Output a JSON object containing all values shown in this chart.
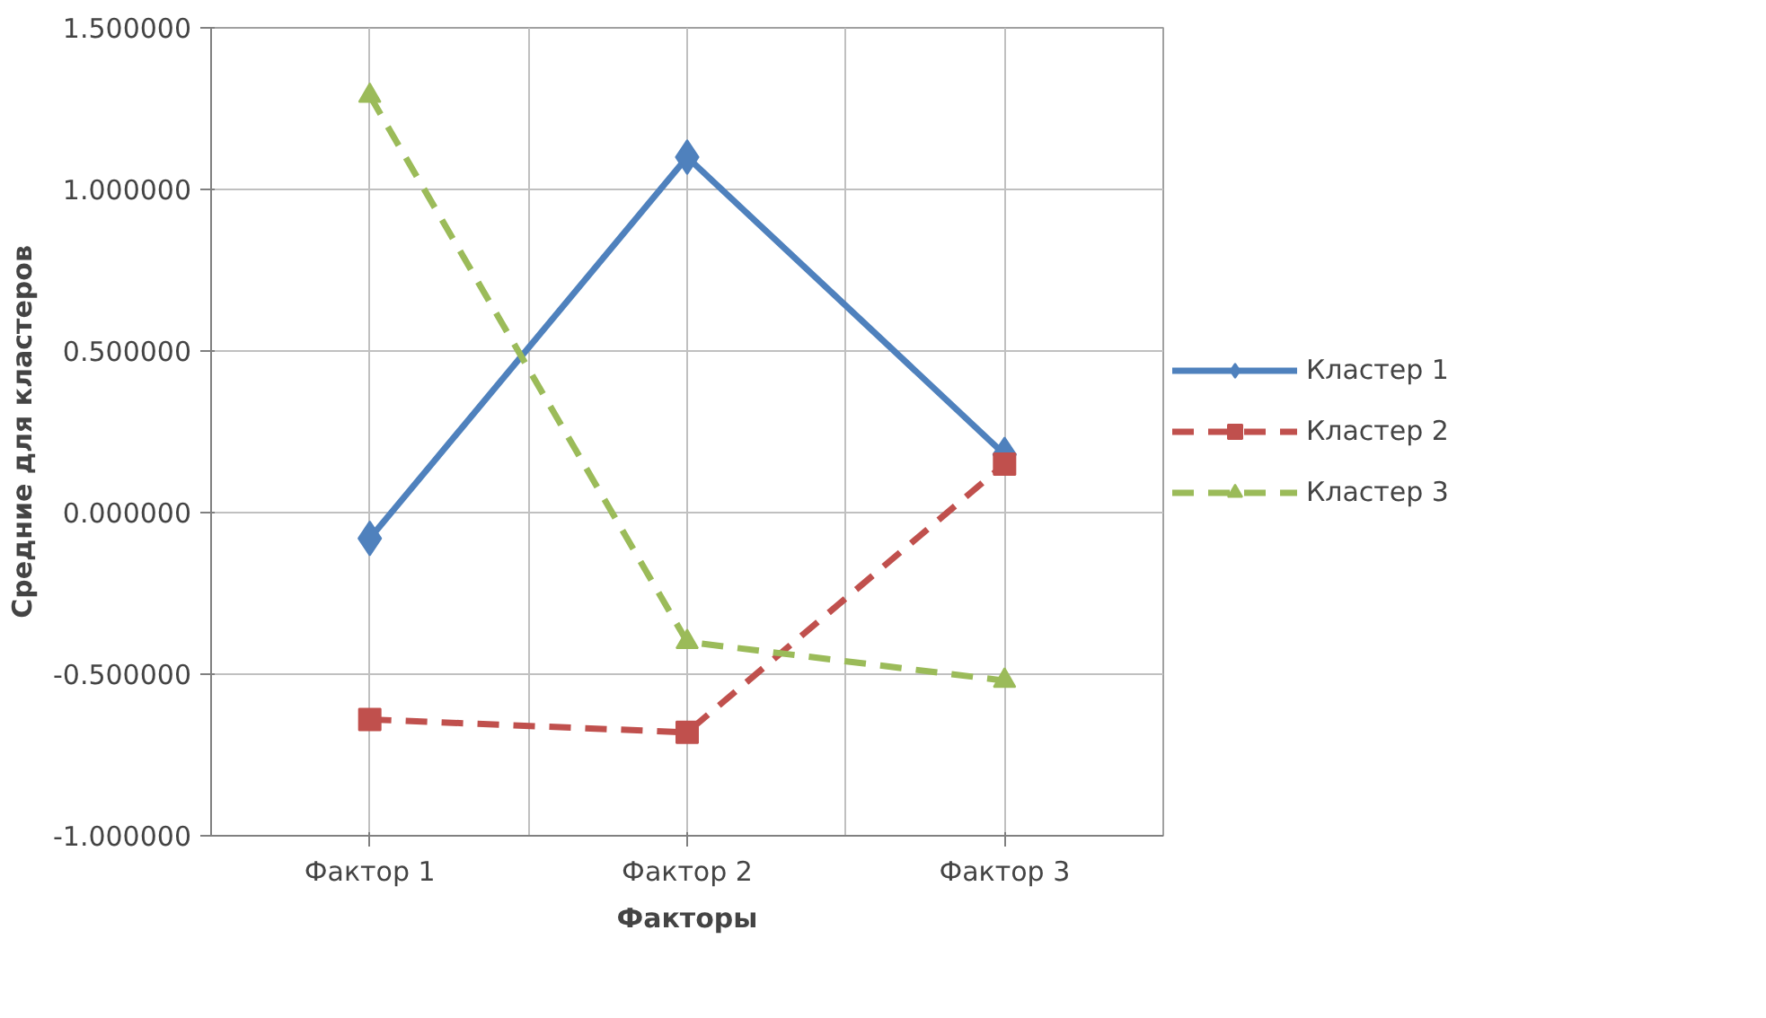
{
  "chart_data": {
    "type": "line",
    "xlabel": "Факторы",
    "ylabel": "Средние для кластеров",
    "categories": [
      "Фактор 1",
      "Фактор 2",
      "Фактор 3"
    ],
    "series": [
      {
        "name": "Кластер 1",
        "color": "#4f81bd",
        "values": [
          -0.08,
          1.1,
          0.18
        ],
        "marker": "diamond",
        "line_style": "solid"
      },
      {
        "name": "Кластер 2",
        "color": "#c0504d",
        "values": [
          -0.64,
          -0.68,
          0.15
        ],
        "marker": "square",
        "line_style": "dashed"
      },
      {
        "name": "Кластер 3",
        "color": "#9bbb59",
        "values": [
          1.29,
          -0.4,
          -0.52
        ],
        "marker": "triangle",
        "line_style": "dashed"
      }
    ],
    "ylim": [
      -1.0,
      1.5
    ],
    "yticks": [
      {
        "value": -1.0,
        "label": "-1.000000"
      },
      {
        "value": -0.5,
        "label": "-0.500000"
      },
      {
        "value": 0.0,
        "label": "0.000000"
      },
      {
        "value": 0.5,
        "label": "0.500000"
      },
      {
        "value": 1.0,
        "label": "1.000000"
      },
      {
        "value": 1.5,
        "label": "1.500000"
      }
    ],
    "grid": true,
    "legend": "right"
  }
}
